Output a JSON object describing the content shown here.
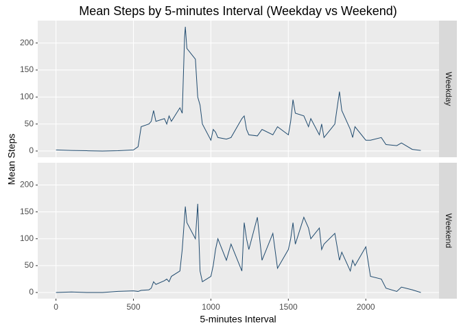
{
  "chart_data": {
    "type": "line",
    "title": "Mean Steps by 5-minutes Interval (Weekday vs Weekend)",
    "x_label": "5-minutes Interval",
    "y_label": "Mean Steps",
    "x": [
      0,
      100,
      200,
      300,
      400,
      500,
      530,
      550,
      600,
      615,
      630,
      645,
      700,
      715,
      730,
      745,
      800,
      815,
      830,
      835,
      845,
      900,
      915,
      930,
      945,
      1000,
      1015,
      1030,
      1045,
      1100,
      1130,
      1200,
      1215,
      1230,
      1245,
      1300,
      1330,
      1400,
      1430,
      1500,
      1515,
      1530,
      1545,
      1600,
      1630,
      1645,
      1700,
      1715,
      1730,
      1800,
      1830,
      1845,
      1900,
      1915,
      1930,
      2000,
      2030,
      2100,
      2130,
      2200,
      2230,
      2300,
      2355
    ],
    "series": [
      {
        "name": "Weekday",
        "color": "#1f4a6e",
        "values": [
          2,
          1,
          0.5,
          0,
          0.5,
          2,
          8,
          45,
          50,
          55,
          75,
          55,
          60,
          50,
          65,
          55,
          80,
          70,
          210,
          230,
          190,
          170,
          100,
          85,
          50,
          20,
          40,
          35,
          25,
          22,
          25,
          60,
          65,
          40,
          30,
          28,
          40,
          30,
          45,
          30,
          55,
          95,
          70,
          65,
          45,
          60,
          30,
          50,
          25,
          50,
          110,
          75,
          40,
          25,
          45,
          20,
          20,
          25,
          12,
          10,
          15,
          3,
          1
        ]
      },
      {
        "name": "Weekend",
        "color": "#1f4a6e",
        "values": [
          0,
          1,
          0,
          0,
          2,
          3,
          2,
          4,
          5,
          8,
          20,
          15,
          22,
          25,
          20,
          30,
          40,
          80,
          140,
          160,
          130,
          100,
          165,
          40,
          20,
          30,
          50,
          80,
          100,
          60,
          90,
          40,
          130,
          100,
          80,
          140,
          60,
          110,
          45,
          80,
          100,
          130,
          90,
          140,
          120,
          100,
          120,
          80,
          90,
          110,
          60,
          75,
          40,
          60,
          50,
          85,
          30,
          25,
          8,
          2,
          10,
          5,
          0
        ]
      }
    ],
    "xlim": [
      -117.75,
      2472.75
    ],
    "xticks": [
      0,
      500,
      1000,
      1500,
      2000
    ],
    "ylim": [
      -11.5,
      241.5
    ],
    "yticks": [
      0,
      50,
      100,
      150,
      200
    ],
    "grid": true
  }
}
